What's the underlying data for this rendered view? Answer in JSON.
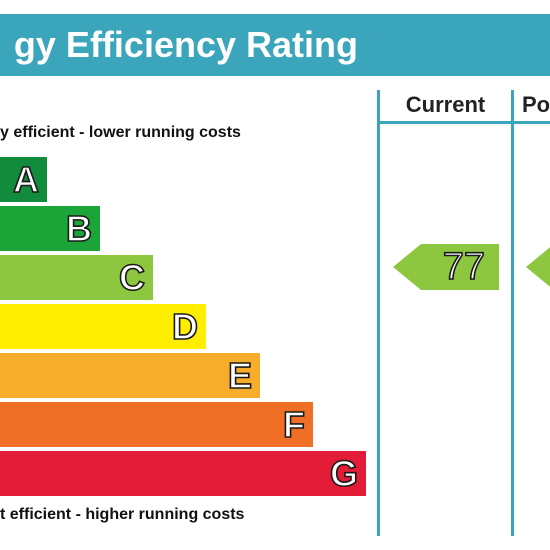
{
  "header": {
    "title": "gy Efficiency Rating",
    "bg_color": "#3aa5bb"
  },
  "columns": {
    "current_label": "Current",
    "potential_label": "Po"
  },
  "captions": {
    "top": "y efficient - lower running costs",
    "bottom": "t efficient - higher running costs"
  },
  "bands": [
    {
      "letter": "A",
      "color": "#128b3d"
    },
    {
      "letter": "B",
      "color": "#1ba538"
    },
    {
      "letter": "C",
      "color": "#8dc63f"
    },
    {
      "letter": "D",
      "color": "#ffee00"
    },
    {
      "letter": "E",
      "color": "#f7ad2b"
    },
    {
      "letter": "F",
      "color": "#ee6f25"
    },
    {
      "letter": "G",
      "color": "#e31d38"
    }
  ],
  "current_rating": {
    "value": "77",
    "band": "C",
    "color": "#8dc63f"
  },
  "potential_rating": {
    "value": "",
    "band": "C",
    "color": "#8dc63f"
  }
}
